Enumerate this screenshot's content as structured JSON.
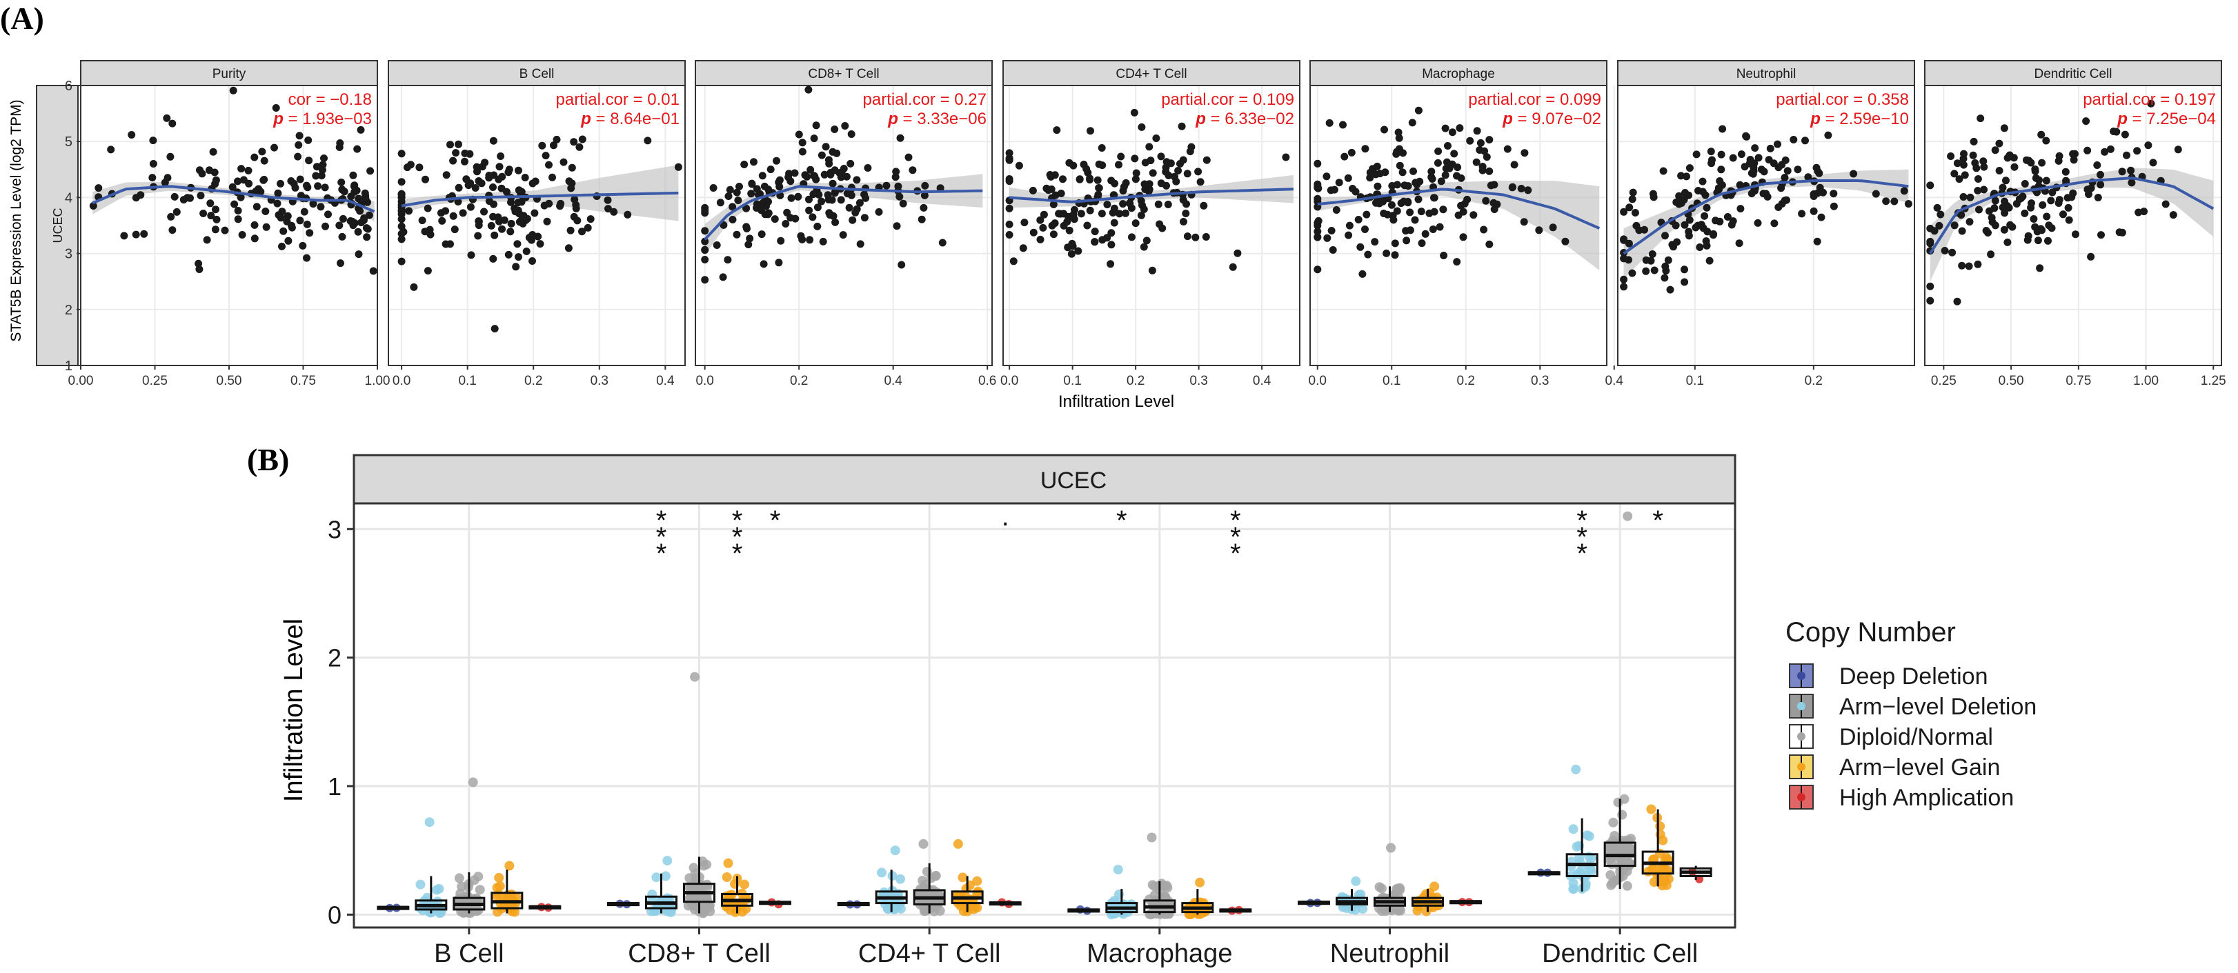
{
  "figure": {
    "panel_a_label": "(A)",
    "panel_b_label": "(B)"
  },
  "chart_data": [
    {
      "type": "scatter",
      "title": "",
      "xlabel": "Infiltration Level",
      "ylabel": "STAT5B Expression Level (log2 TPM)",
      "row_strip": "UCEC",
      "ylim": [
        1,
        6
      ],
      "yticks": [
        1,
        2,
        3,
        4,
        5,
        6
      ],
      "colors": {
        "point": "#1a1a1a",
        "trend": "#3b5ba9",
        "ribbon": "#bdbdbd",
        "stat": "#e31a1c",
        "strip": "#d9d9d9"
      },
      "facets": [
        {
          "name": "Purity",
          "stat_label": "cor",
          "stat_value": "−0.18",
          "p_label": "p",
          "p_value": "1.93e−03",
          "xlim": [
            0,
            1
          ],
          "xticks": [
            "0.00",
            "0.25",
            "0.50",
            "0.75",
            "1.00"
          ],
          "trend": [
            [
              0.04,
              3.9
            ],
            [
              0.15,
              4.15
            ],
            [
              0.3,
              4.2
            ],
            [
              0.5,
              4.1
            ],
            [
              0.65,
              4.0
            ],
            [
              0.8,
              3.95
            ],
            [
              0.9,
              3.95
            ],
            [
              0.99,
              3.75
            ]
          ],
          "ribbon_halfwidth": [
            0.2,
            0.12,
            0.08,
            0.06,
            0.06,
            0.06,
            0.08,
            0.18
          ]
        },
        {
          "name": "B Cell",
          "stat_label": "partial.cor",
          "stat_value": "0.01",
          "p_label": "p",
          "p_value": "8.64e−01",
          "xlim": [
            -0.02,
            0.43
          ],
          "xticks": [
            "0.0",
            "0.1",
            "0.2",
            "0.3",
            "0.4"
          ],
          "trend": [
            [
              0,
              3.85
            ],
            [
              0.05,
              3.95
            ],
            [
              0.1,
              4.0
            ],
            [
              0.2,
              4.02
            ],
            [
              0.3,
              4.05
            ],
            [
              0.42,
              4.08
            ]
          ],
          "ribbon_halfwidth": [
            0.12,
            0.08,
            0.07,
            0.1,
            0.3,
            0.5
          ]
        },
        {
          "name": "CD8+ T Cell",
          "stat_label": "partial.cor",
          "stat_value": "0.27",
          "p_label": "p",
          "p_value": "3.33e−06",
          "xlim": [
            -0.02,
            0.61
          ],
          "xticks": [
            "0.0",
            "0.2",
            "0.4",
            "0.6"
          ],
          "trend": [
            [
              0,
              3.25
            ],
            [
              0.05,
              3.7
            ],
            [
              0.1,
              3.95
            ],
            [
              0.2,
              4.2
            ],
            [
              0.3,
              4.15
            ],
            [
              0.45,
              4.1
            ],
            [
              0.59,
              4.12
            ]
          ],
          "ribbon_halfwidth": [
            0.28,
            0.14,
            0.08,
            0.07,
            0.1,
            0.2,
            0.3
          ]
        },
        {
          "name": "CD4+ T Cell",
          "stat_label": "partial.cor",
          "stat_value": "0.109",
          "p_label": "p",
          "p_value": "6.33e−02",
          "xlim": [
            -0.01,
            0.46
          ],
          "xticks": [
            "0.0",
            "0.1",
            "0.2",
            "0.3",
            "0.4"
          ],
          "trend": [
            [
              0,
              4.0
            ],
            [
              0.1,
              3.92
            ],
            [
              0.2,
              4.02
            ],
            [
              0.3,
              4.1
            ],
            [
              0.45,
              4.15
            ]
          ],
          "ribbon_halfwidth": [
            0.18,
            0.08,
            0.07,
            0.1,
            0.25
          ]
        },
        {
          "name": "Macrophage",
          "stat_label": "partial.cor",
          "stat_value": "0.099",
          "p_label": "p",
          "p_value": "9.07e−02",
          "xlim": [
            -0.01,
            0.39
          ],
          "xticks": [
            "0.0",
            "0.1",
            "0.2",
            "0.3",
            "0.4"
          ],
          "trend": [
            [
              0,
              3.88
            ],
            [
              0.05,
              3.95
            ],
            [
              0.1,
              4.05
            ],
            [
              0.17,
              4.15
            ],
            [
              0.25,
              4.05
            ],
            [
              0.32,
              3.8
            ],
            [
              0.38,
              3.45
            ]
          ],
          "ribbon_halfwidth": [
            0.12,
            0.07,
            0.07,
            0.12,
            0.25,
            0.5,
            0.75
          ]
        },
        {
          "name": "Neutrophil",
          "stat_label": "partial.cor",
          "stat_value": "0.358",
          "p_label": "p",
          "p_value": "2.59e−10",
          "xlim": [
            0.035,
            0.285
          ],
          "xticks": [
            "0.1",
            "0.2"
          ],
          "trend": [
            [
              0.04,
              3.0
            ],
            [
              0.08,
              3.6
            ],
            [
              0.12,
              4.05
            ],
            [
              0.16,
              4.25
            ],
            [
              0.2,
              4.3
            ],
            [
              0.24,
              4.3
            ],
            [
              0.28,
              4.2
            ]
          ],
          "ribbon_halfwidth": [
            0.45,
            0.2,
            0.1,
            0.08,
            0.1,
            0.18,
            0.3
          ]
        },
        {
          "name": "Dendritic Cell",
          "stat_label": "partial.cor",
          "stat_value": "0.197",
          "p_label": "p",
          "p_value": "7.25e−04",
          "xlim": [
            0.18,
            1.28
          ],
          "xticks": [
            "0.25",
            "0.50",
            "0.75",
            "1.00",
            "1.25"
          ],
          "trend": [
            [
              0.2,
              3.0
            ],
            [
              0.3,
              3.75
            ],
            [
              0.45,
              4.05
            ],
            [
              0.6,
              4.15
            ],
            [
              0.8,
              4.3
            ],
            [
              0.95,
              4.35
            ],
            [
              1.1,
              4.2
            ],
            [
              1.25,
              3.8
            ]
          ],
          "ribbon_halfwidth": [
            0.5,
            0.2,
            0.08,
            0.08,
            0.12,
            0.18,
            0.3,
            0.5
          ]
        }
      ]
    },
    {
      "type": "box",
      "title": "UCEC",
      "xlabel": "",
      "ylabel": "Infiltration Level",
      "ylim": [
        -0.1,
        3.2
      ],
      "yticks": [
        0,
        1,
        2,
        3
      ],
      "categories": [
        "B Cell",
        "CD8+ T Cell",
        "CD4+ T Cell",
        "Macrophage",
        "Neutrophil",
        "Dendritic Cell"
      ],
      "legend": {
        "title": "Copy Number",
        "position": "right",
        "items": [
          "Deep Deletion",
          "Arm−level Deletion",
          "Diploid/Normal",
          "Arm−level Gain",
          "High Amplication"
        ],
        "fills": [
          "#7b86c7",
          "#9a9a9a",
          "#ffffff",
          "#f5d76e",
          "#e06666"
        ]
      },
      "series_colors": {
        "Deep Deletion": "#3b4a9c",
        "Arm−level Deletion": "#8ecfe6",
        "Diploid/Normal": "#a6a6a6",
        "Arm−level Gain": "#f3a21a",
        "High Amplication": "#d62728"
      },
      "groups": [
        {
          "category": "B Cell",
          "boxes": [
            {
              "series": "Deep Deletion",
              "q1": 0.05,
              "median": 0.055,
              "q3": 0.06,
              "lo": 0.05,
              "hi": 0.06,
              "max": null
            },
            {
              "series": "Arm−level Deletion",
              "q1": 0.04,
              "median": 0.07,
              "q3": 0.11,
              "lo": 0.01,
              "hi": 0.3,
              "max": 0.72
            },
            {
              "series": "Diploid/Normal",
              "q1": 0.04,
              "median": 0.08,
              "q3": 0.13,
              "lo": 0.01,
              "hi": 0.33,
              "max": 1.03
            },
            {
              "series": "Arm−level Gain",
              "q1": 0.05,
              "median": 0.1,
              "q3": 0.17,
              "lo": 0.01,
              "hi": 0.35,
              "max": 0.38
            },
            {
              "series": "High Amplication",
              "q1": 0.055,
              "median": 0.06,
              "q3": 0.065,
              "lo": 0.05,
              "hi": 0.07,
              "max": null
            }
          ],
          "sig": []
        },
        {
          "category": "CD8+ T Cell",
          "boxes": [
            {
              "series": "Deep Deletion",
              "q1": 0.08,
              "median": 0.085,
              "q3": 0.09,
              "lo": 0.08,
              "hi": 0.09,
              "max": null
            },
            {
              "series": "Arm−level Deletion",
              "q1": 0.05,
              "median": 0.09,
              "q3": 0.14,
              "lo": 0.01,
              "hi": 0.32,
              "max": 0.42
            },
            {
              "series": "Diploid/Normal",
              "q1": 0.1,
              "median": 0.17,
              "q3": 0.24,
              "lo": 0.01,
              "hi": 0.45,
              "max": 1.85
            },
            {
              "series": "Arm−level Gain",
              "q1": 0.07,
              "median": 0.11,
              "q3": 0.16,
              "lo": 0.01,
              "hi": 0.3,
              "max": 0.4
            },
            {
              "series": "High Amplication",
              "q1": 0.085,
              "median": 0.09,
              "q3": 0.1,
              "lo": 0.08,
              "hi": 0.1,
              "max": null
            }
          ],
          "sig": [
            {
              "label": "***",
              "series": "Arm−level Deletion"
            },
            {
              "label": "***",
              "series": "Arm−level Gain"
            },
            {
              "label": "*",
              "series": "High Amplication"
            }
          ]
        },
        {
          "category": "CD4+ T Cell",
          "boxes": [
            {
              "series": "Deep Deletion",
              "q1": 0.08,
              "median": 0.085,
              "q3": 0.09,
              "lo": 0.08,
              "hi": 0.09,
              "max": null
            },
            {
              "series": "Arm−level Deletion",
              "q1": 0.09,
              "median": 0.13,
              "q3": 0.18,
              "lo": 0.02,
              "hi": 0.35,
              "max": 0.5
            },
            {
              "series": "Diploid/Normal",
              "q1": 0.08,
              "median": 0.13,
              "q3": 0.19,
              "lo": 0.01,
              "hi": 0.4,
              "max": 0.55
            },
            {
              "series": "Arm−level Gain",
              "q1": 0.09,
              "median": 0.13,
              "q3": 0.18,
              "lo": 0.02,
              "hi": 0.3,
              "max": 0.55
            },
            {
              "series": "High Amplication",
              "q1": 0.085,
              "median": 0.09,
              "q3": 0.095,
              "lo": 0.08,
              "hi": 0.1,
              "max": null
            }
          ],
          "sig": [
            {
              "label": ".",
              "series": "High Amplication"
            }
          ]
        },
        {
          "category": "Macrophage",
          "boxes": [
            {
              "series": "Deep Deletion",
              "q1": 0.03,
              "median": 0.035,
              "q3": 0.04,
              "lo": 0.03,
              "hi": 0.04,
              "max": null
            },
            {
              "series": "Arm−level Deletion",
              "q1": 0.02,
              "median": 0.05,
              "q3": 0.09,
              "lo": 0.0,
              "hi": 0.2,
              "max": 0.35
            },
            {
              "series": "Diploid/Normal",
              "q1": 0.02,
              "median": 0.06,
              "q3": 0.11,
              "lo": 0.0,
              "hi": 0.26,
              "max": 0.6
            },
            {
              "series": "Arm−level Gain",
              "q1": 0.02,
              "median": 0.05,
              "q3": 0.09,
              "lo": 0.0,
              "hi": 0.2,
              "max": 0.25
            },
            {
              "series": "High Amplication",
              "q1": 0.03,
              "median": 0.035,
              "q3": 0.04,
              "lo": 0.03,
              "hi": 0.04,
              "max": null
            }
          ],
          "sig": [
            {
              "label": "*",
              "series": "Arm−level Deletion"
            },
            {
              "label": "***",
              "series": "High Amplication"
            }
          ]
        },
        {
          "category": "Neutrophil",
          "boxes": [
            {
              "series": "Deep Deletion",
              "q1": 0.09,
              "median": 0.095,
              "q3": 0.1,
              "lo": 0.09,
              "hi": 0.1,
              "max": null
            },
            {
              "series": "Arm−level Deletion",
              "q1": 0.08,
              "median": 0.1,
              "q3": 0.13,
              "lo": 0.03,
              "hi": 0.2,
              "max": 0.26
            },
            {
              "series": "Diploid/Normal",
              "q1": 0.07,
              "median": 0.1,
              "q3": 0.13,
              "lo": 0.02,
              "hi": 0.22,
              "max": 0.52
            },
            {
              "series": "Arm−level Gain",
              "q1": 0.07,
              "median": 0.1,
              "q3": 0.13,
              "lo": 0.02,
              "hi": 0.2,
              "max": 0.22
            },
            {
              "series": "High Amplication",
              "q1": 0.095,
              "median": 0.1,
              "q3": 0.105,
              "lo": 0.09,
              "hi": 0.11,
              "max": null
            }
          ],
          "sig": []
        },
        {
          "category": "Dendritic Cell",
          "boxes": [
            {
              "series": "Deep Deletion",
              "q1": 0.32,
              "median": 0.325,
              "q3": 0.33,
              "lo": 0.32,
              "hi": 0.33,
              "max": null
            },
            {
              "series": "Arm−level Deletion",
              "q1": 0.3,
              "median": 0.39,
              "q3": 0.47,
              "lo": 0.18,
              "hi": 0.75,
              "max": 1.13
            },
            {
              "series": "Diploid/Normal",
              "q1": 0.38,
              "median": 0.46,
              "q3": 0.56,
              "lo": 0.2,
              "hi": 0.9,
              "max": 3.1
            },
            {
              "series": "Arm−level Gain",
              "q1": 0.32,
              "median": 0.4,
              "q3": 0.49,
              "lo": 0.22,
              "hi": 0.82,
              "max": 0.82
            },
            {
              "series": "High Amplication",
              "q1": 0.3,
              "median": 0.33,
              "q3": 0.36,
              "lo": 0.27,
              "hi": 0.38,
              "max": null
            }
          ],
          "sig": [
            {
              "label": "***",
              "series": "Arm−level Deletion"
            },
            {
              "label": "*",
              "series": "Arm−level Gain"
            }
          ]
        }
      ]
    }
  ]
}
